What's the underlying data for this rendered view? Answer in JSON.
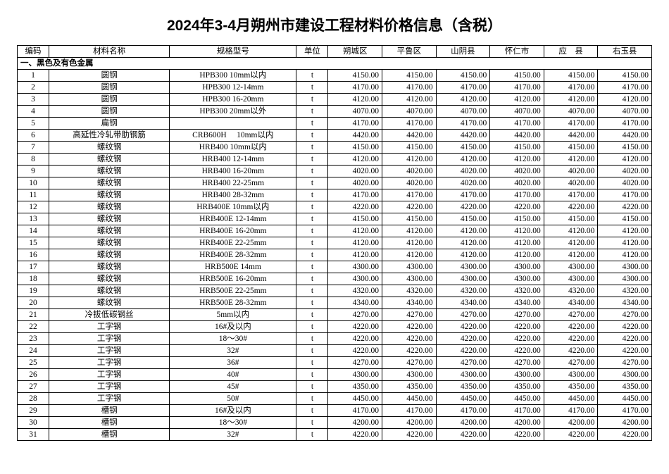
{
  "title": "2024年3-4月朔州市建设工程材料价格信息（含税）",
  "colors": {
    "background": "#ffffff",
    "border": "#000000",
    "text": "#000000"
  },
  "typography": {
    "title_fontsize": 21,
    "table_fontsize": 11.5
  },
  "table": {
    "columns": [
      "编码",
      "材料名称",
      "规格型号",
      "单位",
      "朔城区",
      "平鲁区",
      "山阴县",
      "怀仁市",
      "应　县",
      "右玉县"
    ],
    "section_header": "一、黑色及有色金属",
    "rows": [
      {
        "code": "1",
        "name": "圆钢",
        "spec": "HPB300 10mm以内",
        "unit": "t",
        "prices": [
          "4150.00",
          "4150.00",
          "4150.00",
          "4150.00",
          "4150.00",
          "4150.00"
        ]
      },
      {
        "code": "2",
        "name": "圆钢",
        "spec": "HPB300 12-14mm",
        "unit": "t",
        "prices": [
          "4170.00",
          "4170.00",
          "4170.00",
          "4170.00",
          "4170.00",
          "4170.00"
        ]
      },
      {
        "code": "3",
        "name": "圆钢",
        "spec": "HPB300 16-20mm",
        "unit": "t",
        "prices": [
          "4120.00",
          "4120.00",
          "4120.00",
          "4120.00",
          "4120.00",
          "4120.00"
        ]
      },
      {
        "code": "4",
        "name": "圆钢",
        "spec": "HPB300 20mm以外",
        "unit": "t",
        "prices": [
          "4070.00",
          "4070.00",
          "4070.00",
          "4070.00",
          "4070.00",
          "4070.00"
        ]
      },
      {
        "code": "5",
        "name": "扁钢",
        "spec": "",
        "unit": "t",
        "prices": [
          "4170.00",
          "4170.00",
          "4170.00",
          "4170.00",
          "4170.00",
          "4170.00"
        ]
      },
      {
        "code": "6",
        "name": "高延性冷轧带肋钢筋",
        "spec": "CRB600H 　10mm以内",
        "unit": "t",
        "prices": [
          "4420.00",
          "4420.00",
          "4420.00",
          "4420.00",
          "4420.00",
          "4420.00"
        ]
      },
      {
        "code": "7",
        "name": "螺纹钢",
        "spec": "HRB400 10mm以内",
        "unit": "t",
        "prices": [
          "4150.00",
          "4150.00",
          "4150.00",
          "4150.00",
          "4150.00",
          "4150.00"
        ]
      },
      {
        "code": "8",
        "name": "螺纹钢",
        "spec": "HRB400 12-14mm",
        "unit": "t",
        "prices": [
          "4120.00",
          "4120.00",
          "4120.00",
          "4120.00",
          "4120.00",
          "4120.00"
        ]
      },
      {
        "code": "9",
        "name": "螺纹钢",
        "spec": "HRB400 16-20mm",
        "unit": "t",
        "prices": [
          "4020.00",
          "4020.00",
          "4020.00",
          "4020.00",
          "4020.00",
          "4020.00"
        ]
      },
      {
        "code": "10",
        "name": "螺纹钢",
        "spec": "HRB400 22-25mm",
        "unit": "t",
        "prices": [
          "4020.00",
          "4020.00",
          "4020.00",
          "4020.00",
          "4020.00",
          "4020.00"
        ]
      },
      {
        "code": "11",
        "name": "螺纹钢",
        "spec": "HRB400 28-32mm",
        "unit": "t",
        "prices": [
          "4170.00",
          "4170.00",
          "4170.00",
          "4170.00",
          "4170.00",
          "4170.00"
        ]
      },
      {
        "code": "12",
        "name": "螺纹钢",
        "spec": "HRB400E 10mm以内",
        "unit": "t",
        "prices": [
          "4220.00",
          "4220.00",
          "4220.00",
          "4220.00",
          "4220.00",
          "4220.00"
        ]
      },
      {
        "code": "13",
        "name": "螺纹钢",
        "spec": "HRB400E 12-14mm",
        "unit": "t",
        "prices": [
          "4150.00",
          "4150.00",
          "4150.00",
          "4150.00",
          "4150.00",
          "4150.00"
        ]
      },
      {
        "code": "14",
        "name": "螺纹钢",
        "spec": "HRB400E 16-20mm",
        "unit": "t",
        "prices": [
          "4120.00",
          "4120.00",
          "4120.00",
          "4120.00",
          "4120.00",
          "4120.00"
        ]
      },
      {
        "code": "15",
        "name": "螺纹钢",
        "spec": "HRB400E 22-25mm",
        "unit": "t",
        "prices": [
          "4120.00",
          "4120.00",
          "4120.00",
          "4120.00",
          "4120.00",
          "4120.00"
        ]
      },
      {
        "code": "16",
        "name": "螺纹钢",
        "spec": "HRB400E 28-32mm",
        "unit": "t",
        "prices": [
          "4120.00",
          "4120.00",
          "4120.00",
          "4120.00",
          "4120.00",
          "4120.00"
        ]
      },
      {
        "code": "17",
        "name": "螺纹钢",
        "spec": "HRB500E 14mm",
        "unit": "t",
        "prices": [
          "4300.00",
          "4300.00",
          "4300.00",
          "4300.00",
          "4300.00",
          "4300.00"
        ]
      },
      {
        "code": "18",
        "name": "螺纹钢",
        "spec": "HRB500E 16-20mm",
        "unit": "t",
        "prices": [
          "4300.00",
          "4300.00",
          "4300.00",
          "4300.00",
          "4300.00",
          "4300.00"
        ]
      },
      {
        "code": "19",
        "name": "螺纹钢",
        "spec": "HRB500E 22-25mm",
        "unit": "t",
        "prices": [
          "4320.00",
          "4320.00",
          "4320.00",
          "4320.00",
          "4320.00",
          "4320.00"
        ]
      },
      {
        "code": "20",
        "name": "螺纹钢",
        "spec": "HRB500E 28-32mm",
        "unit": "t",
        "prices": [
          "4340.00",
          "4340.00",
          "4340.00",
          "4340.00",
          "4340.00",
          "4340.00"
        ]
      },
      {
        "code": "21",
        "name": "冷拔低碳钢丝",
        "spec": "5mm以内",
        "unit": "t",
        "prices": [
          "4270.00",
          "4270.00",
          "4270.00",
          "4270.00",
          "4270.00",
          "4270.00"
        ]
      },
      {
        "code": "22",
        "name": "工字钢",
        "spec": "16#及以内",
        "unit": "t",
        "prices": [
          "4220.00",
          "4220.00",
          "4220.00",
          "4220.00",
          "4220.00",
          "4220.00"
        ]
      },
      {
        "code": "23",
        "name": "工字钢",
        "spec": "18～30#",
        "unit": "t",
        "prices": [
          "4220.00",
          "4220.00",
          "4220.00",
          "4220.00",
          "4220.00",
          "4220.00"
        ]
      },
      {
        "code": "24",
        "name": "工字钢",
        "spec": "32#",
        "unit": "t",
        "prices": [
          "4220.00",
          "4220.00",
          "4220.00",
          "4220.00",
          "4220.00",
          "4220.00"
        ]
      },
      {
        "code": "25",
        "name": "工字钢",
        "spec": "36#",
        "unit": "t",
        "prices": [
          "4270.00",
          "4270.00",
          "4270.00",
          "4270.00",
          "4270.00",
          "4270.00"
        ]
      },
      {
        "code": "26",
        "name": "工字钢",
        "spec": "40#",
        "unit": "t",
        "prices": [
          "4300.00",
          "4300.00",
          "4300.00",
          "4300.00",
          "4300.00",
          "4300.00"
        ]
      },
      {
        "code": "27",
        "name": "工字钢",
        "spec": "45#",
        "unit": "t",
        "prices": [
          "4350.00",
          "4350.00",
          "4350.00",
          "4350.00",
          "4350.00",
          "4350.00"
        ]
      },
      {
        "code": "28",
        "name": "工字钢",
        "spec": "50#",
        "unit": "t",
        "prices": [
          "4450.00",
          "4450.00",
          "4450.00",
          "4450.00",
          "4450.00",
          "4450.00"
        ]
      },
      {
        "code": "29",
        "name": "槽钢",
        "spec": "16#及以内",
        "unit": "t",
        "prices": [
          "4170.00",
          "4170.00",
          "4170.00",
          "4170.00",
          "4170.00",
          "4170.00"
        ]
      },
      {
        "code": "30",
        "name": "槽钢",
        "spec": "18～30#",
        "unit": "t",
        "prices": [
          "4200.00",
          "4200.00",
          "4200.00",
          "4200.00",
          "4200.00",
          "4200.00"
        ]
      },
      {
        "code": "31",
        "name": "槽钢",
        "spec": "32#",
        "unit": "t",
        "prices": [
          "4220.00",
          "4220.00",
          "4220.00",
          "4220.00",
          "4220.00",
          "4220.00"
        ]
      }
    ]
  }
}
